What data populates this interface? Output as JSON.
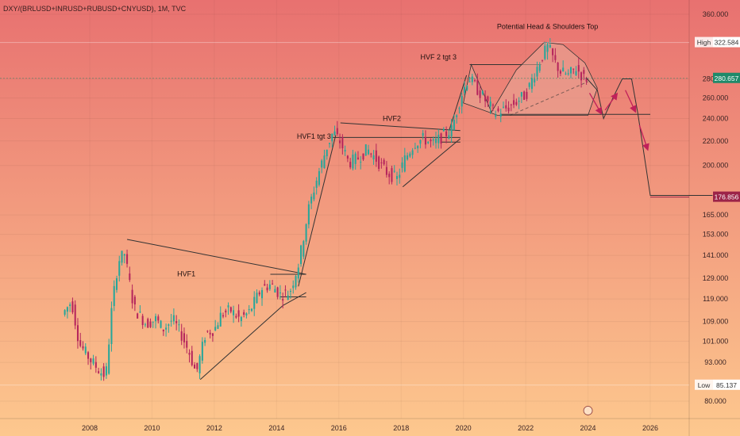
{
  "symbol_title": "DXY/(BRLUSD+INRUSD+RUBUSD+CNYUSD), 1M, TVC",
  "colors": {
    "bg_top": "#e87170",
    "bg_bottom": "#fdc88e",
    "up": "#26a69a",
    "down": "#b5245c",
    "line": "#333333",
    "triangle_fill": "#e8a898",
    "current_price_bg": "#1f8a6a",
    "target_price_bg": "#9c2348",
    "arrow": "#c0205a"
  },
  "chart_data": {
    "type": "candlestick",
    "y_scale": "log",
    "x_labels": [
      "2008",
      "2010",
      "2012",
      "2014",
      "2016",
      "2018",
      "2020",
      "2022",
      "2024",
      "2026"
    ],
    "y_ticks": [
      "360.000",
      "280.000",
      "260.000",
      "240.000",
      "220.000",
      "200.000",
      "165.000",
      "153.000",
      "141.000",
      "129.000",
      "119.000",
      "109.000",
      "101.000",
      "93.000",
      "80.000"
    ],
    "high": {
      "label": "High",
      "value": "322.584"
    },
    "low": {
      "label": "Low",
      "value": "85.137"
    },
    "current_price": "280.657",
    "target_price": "176.856",
    "annotations": [
      {
        "text": "Potential Head & Shoulders Top"
      },
      {
        "text": "HVF 2 tgt 3"
      },
      {
        "text": "HVF2"
      },
      {
        "text": "HVF1 tgt 3"
      },
      {
        "text": "HVF1"
      }
    ],
    "approx_path": [
      {
        "t": 2007.2,
        "v": 112
      },
      {
        "t": 2007.5,
        "v": 118
      },
      {
        "t": 2007.75,
        "v": 100
      },
      {
        "t": 2008.1,
        "v": 94
      },
      {
        "t": 2008.4,
        "v": 90
      },
      {
        "t": 2008.6,
        "v": 88
      },
      {
        "t": 2008.8,
        "v": 116
      },
      {
        "t": 2009.0,
        "v": 138
      },
      {
        "t": 2009.2,
        "v": 142
      },
      {
        "t": 2009.5,
        "v": 115
      },
      {
        "t": 2009.9,
        "v": 108
      },
      {
        "t": 2010.2,
        "v": 110
      },
      {
        "t": 2010.45,
        "v": 106
      },
      {
        "t": 2010.75,
        "v": 110
      },
      {
        "t": 2011.05,
        "v": 103
      },
      {
        "t": 2011.3,
        "v": 96
      },
      {
        "t": 2011.5,
        "v": 89
      },
      {
        "t": 2011.8,
        "v": 104
      },
      {
        "t": 2012.1,
        "v": 106
      },
      {
        "t": 2012.3,
        "v": 112
      },
      {
        "t": 2012.6,
        "v": 114
      },
      {
        "t": 2012.9,
        "v": 110
      },
      {
        "t": 2013.2,
        "v": 113
      },
      {
        "t": 2013.6,
        "v": 124
      },
      {
        "t": 2013.9,
        "v": 126
      },
      {
        "t": 2014.2,
        "v": 121
      },
      {
        "t": 2014.5,
        "v": 122
      },
      {
        "t": 2014.8,
        "v": 137
      },
      {
        "t": 2015.1,
        "v": 168
      },
      {
        "t": 2015.4,
        "v": 192
      },
      {
        "t": 2015.7,
        "v": 215
      },
      {
        "t": 2015.9,
        "v": 228
      },
      {
        "t": 2016.15,
        "v": 218
      },
      {
        "t": 2016.4,
        "v": 202
      },
      {
        "t": 2016.7,
        "v": 206
      },
      {
        "t": 2017.0,
        "v": 213
      },
      {
        "t": 2017.25,
        "v": 206
      },
      {
        "t": 2017.6,
        "v": 195
      },
      {
        "t": 2017.95,
        "v": 190
      },
      {
        "t": 2018.2,
        "v": 205
      },
      {
        "t": 2018.5,
        "v": 218
      },
      {
        "t": 2018.8,
        "v": 222
      },
      {
        "t": 2019.1,
        "v": 217
      },
      {
        "t": 2019.4,
        "v": 224
      },
      {
        "t": 2019.7,
        "v": 230
      },
      {
        "t": 2020.0,
        "v": 262
      },
      {
        "t": 2020.25,
        "v": 282
      },
      {
        "t": 2020.55,
        "v": 268
      },
      {
        "t": 2020.85,
        "v": 255
      },
      {
        "t": 2021.1,
        "v": 245
      },
      {
        "t": 2021.35,
        "v": 248
      },
      {
        "t": 2021.6,
        "v": 252
      },
      {
        "t": 2021.85,
        "v": 258
      },
      {
        "t": 2022.1,
        "v": 264
      },
      {
        "t": 2022.35,
        "v": 285
      },
      {
        "t": 2022.6,
        "v": 305
      },
      {
        "t": 2022.8,
        "v": 318
      },
      {
        "t": 2023.0,
        "v": 300
      },
      {
        "t": 2023.2,
        "v": 288
      },
      {
        "t": 2023.45,
        "v": 284
      },
      {
        "t": 2023.7,
        "v": 292
      },
      {
        "t": 2023.95,
        "v": 281
      }
    ]
  }
}
